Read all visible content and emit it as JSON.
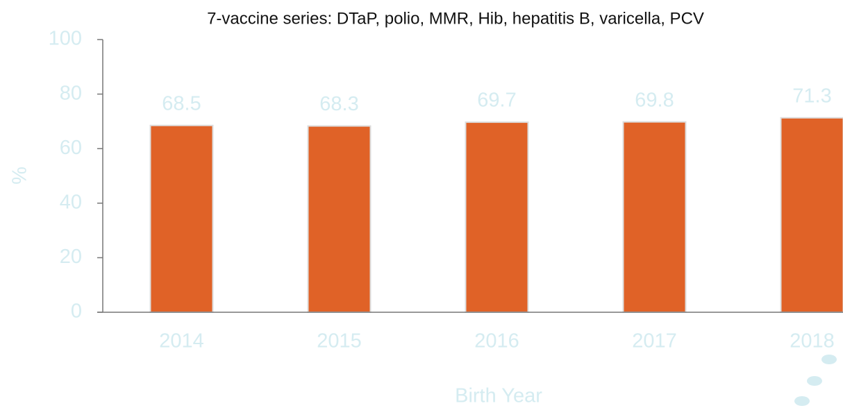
{
  "chart_data": {
    "type": "bar",
    "title": "7-vaccine series: DTaP, polio, MMR, Hib, hepatitis B, varicella, PCV",
    "x_label": "Birth Year",
    "y_label": "%",
    "categories": [
      "2014",
      "2015",
      "2016",
      "2017",
      "2018"
    ],
    "values": [
      68.5,
      68.3,
      69.7,
      69.8,
      71.3
    ],
    "color": "#e06227",
    "ylim": [
      0,
      100
    ],
    "yticks": [
      0,
      20,
      40,
      60,
      80,
      100
    ],
    "grid": false
  }
}
